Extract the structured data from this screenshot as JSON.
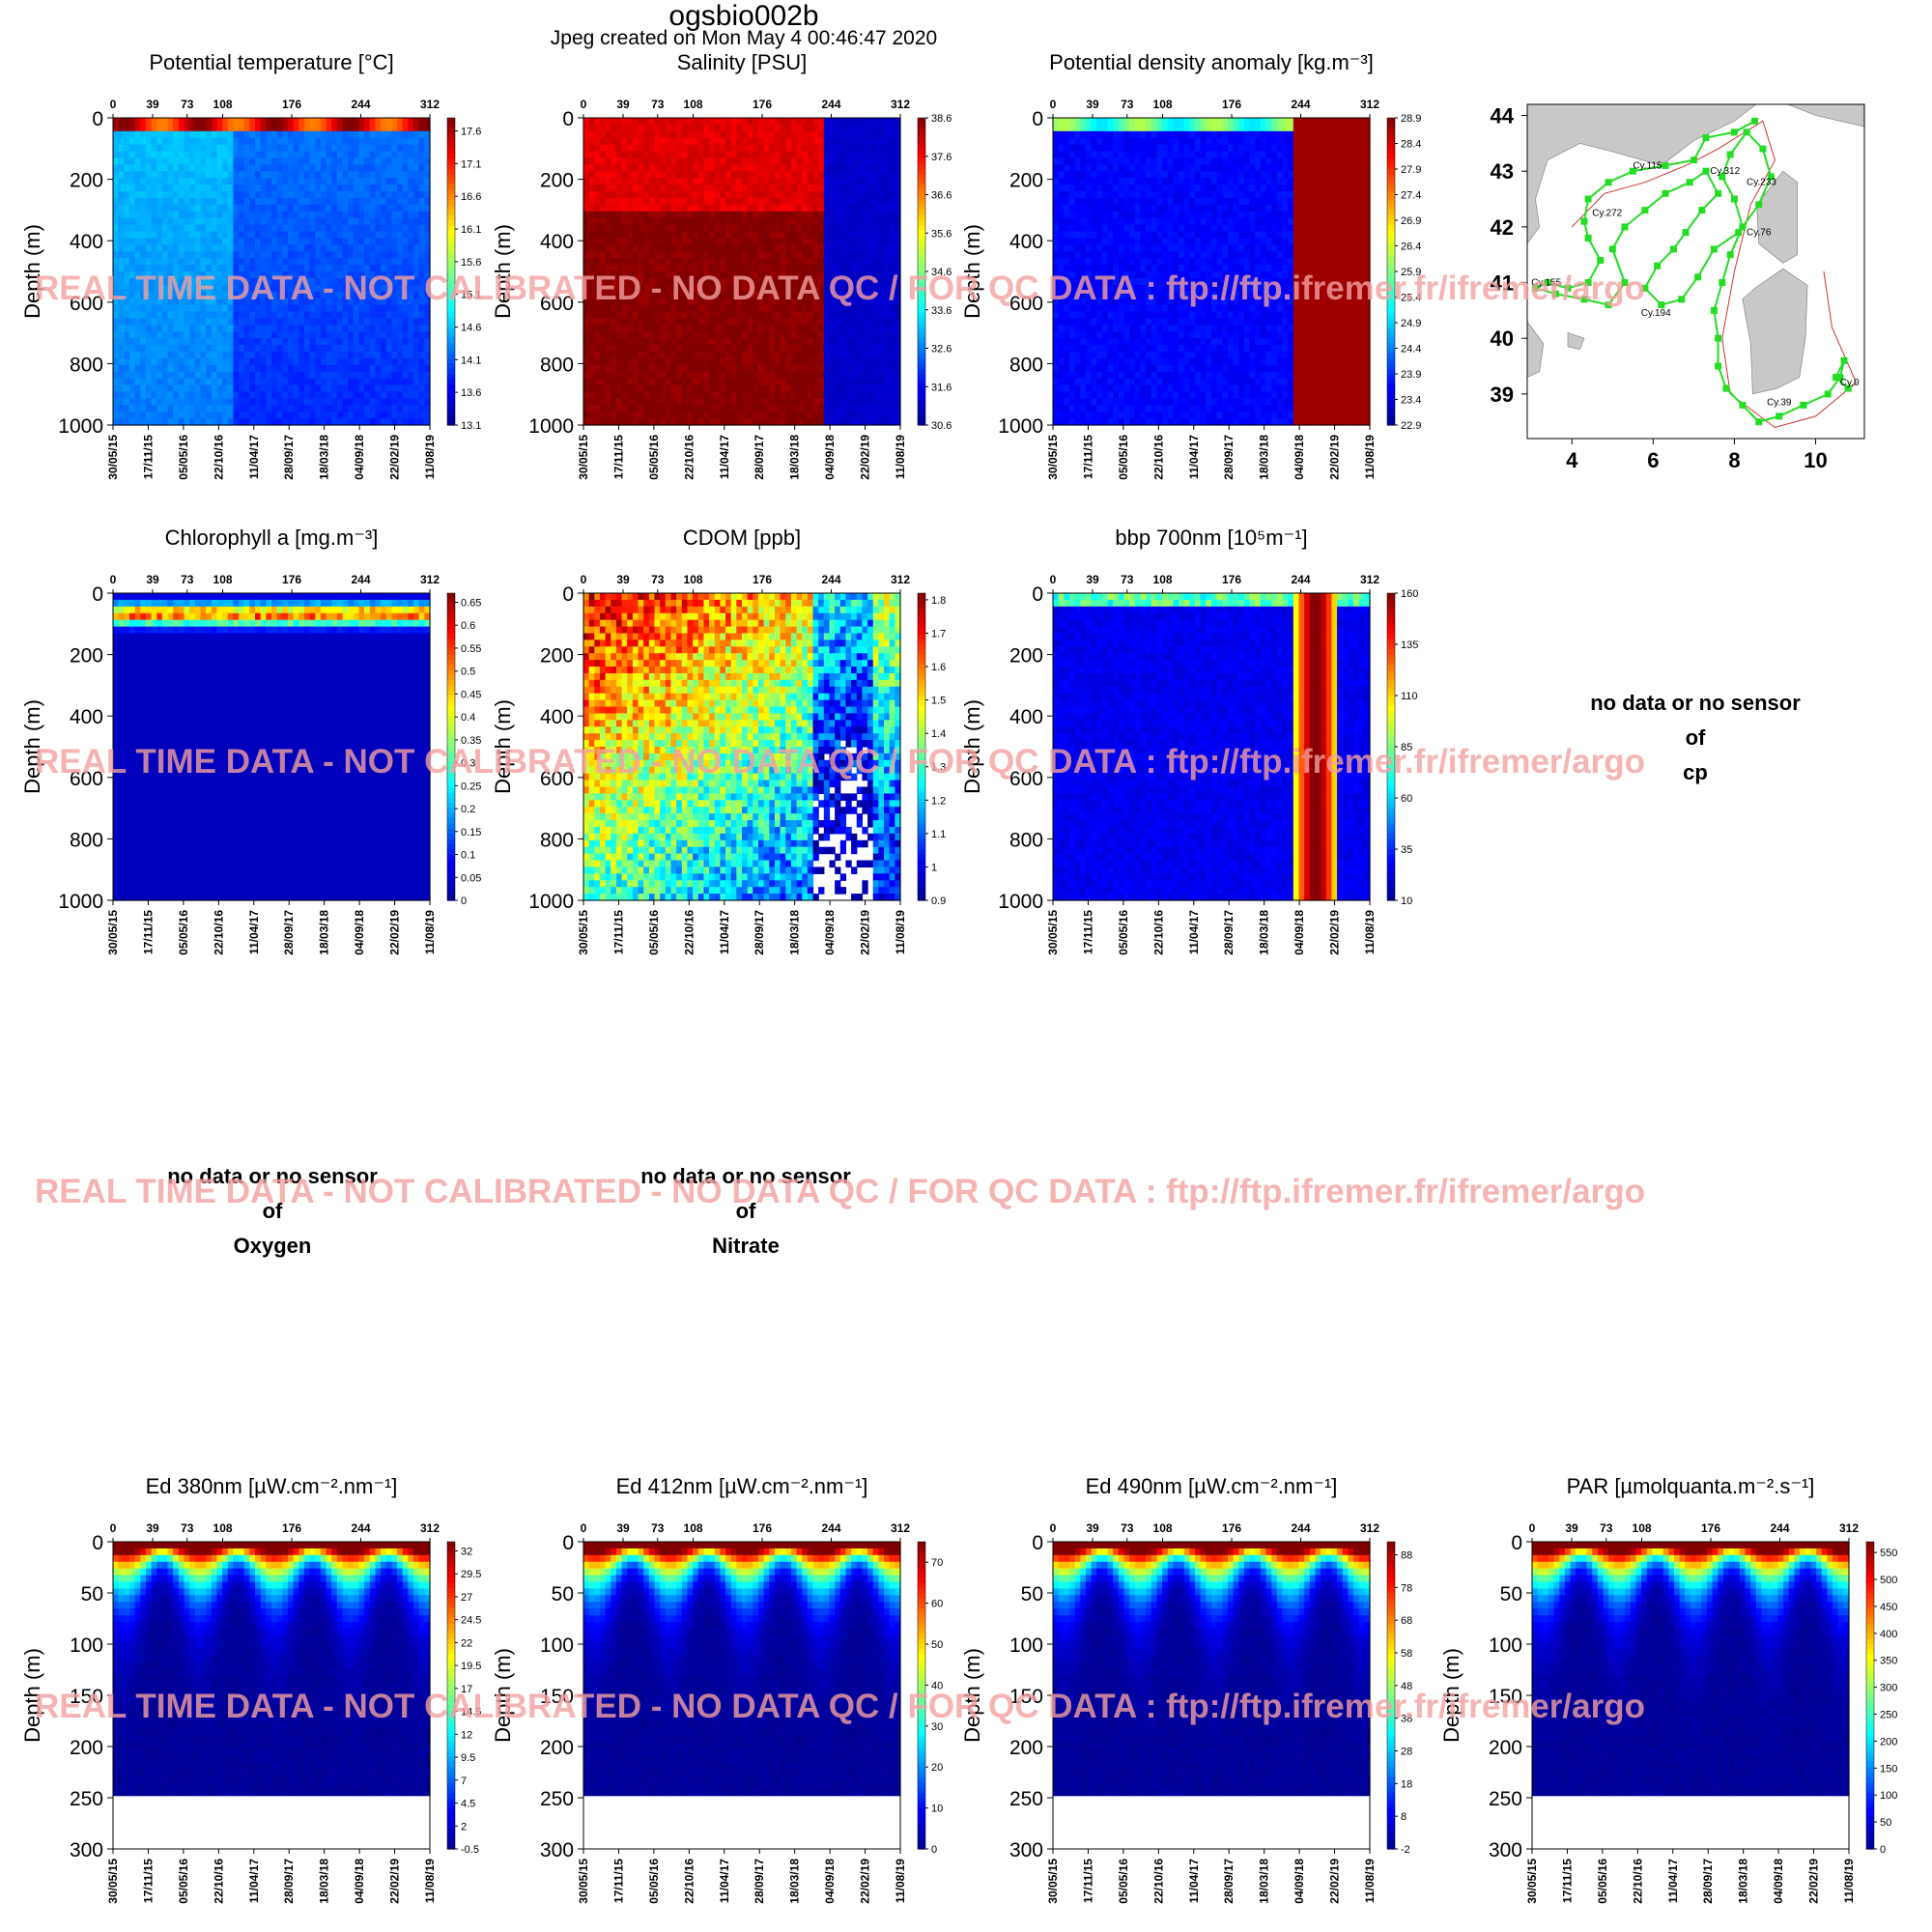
{
  "page": {
    "title": "ogsbio002b",
    "subtitle": "Jpeg created on  Mon May  4 00:46:47 2020",
    "watermark": "REAL TIME DATA - NOT CALIBRATED - NO DATA QC   /  FOR QC DATA : ftp://ftp.ifremer.fr/ifremer/argo",
    "no_data_lines": [
      "no data or no sensor",
      "of"
    ]
  },
  "axes": {
    "depth_label": "Depth (m)",
    "cycle_ticks": [
      0,
      39,
      73,
      108,
      176,
      244,
      312
    ],
    "date_ticks": [
      "30/05/15",
      "17/11/15",
      "05/05/16",
      "22/10/16",
      "11/04/17",
      "28/09/17",
      "18/03/18",
      "04/09/18",
      "22/02/19",
      "11/08/19"
    ]
  },
  "colors": {
    "colormap": [
      "#00008f",
      "#0000ff",
      "#0080ff",
      "#00ffff",
      "#80ff80",
      "#ffff00",
      "#ff8000",
      "#ff0000",
      "#800000"
    ],
    "track": "#22dd22",
    "land": "#c8c8c8",
    "watermark": "#f4a0a0"
  },
  "chart_data": [
    {
      "id": "temp",
      "type": "heatmap",
      "title": "Potential temperature [°C]",
      "ylabel": "Depth (m)",
      "ylim": [
        0,
        1000
      ],
      "y_ticks": [
        0,
        200,
        400,
        600,
        800,
        1000
      ],
      "colorbar": {
        "ticks": [
          "17.6",
          "17.1",
          "16.6",
          "16.1",
          "15.6",
          "15.1",
          "14.6",
          "14.1",
          "13.6",
          "13.1"
        ],
        "range": [
          13.1,
          17.8
        ]
      },
      "pattern": "temp"
    },
    {
      "id": "sal",
      "type": "heatmap",
      "title": "Salinity [PSU]",
      "ylabel": "Depth (m)",
      "ylim": [
        0,
        1000
      ],
      "y_ticks": [
        0,
        200,
        400,
        600,
        800,
        1000
      ],
      "colorbar": {
        "ticks": [
          "38.6",
          "37.6",
          "36.6",
          "35.6",
          "34.6",
          "33.6",
          "32.6",
          "31.6",
          "30.6"
        ],
        "range": [
          30.6,
          38.6
        ]
      },
      "pattern": "sal"
    },
    {
      "id": "dens",
      "type": "heatmap",
      "title": "Potential density anomaly [kg.m⁻³]",
      "ylabel": "Depth (m)",
      "ylim": [
        0,
        1000
      ],
      "y_ticks": [
        0,
        200,
        400,
        600,
        800,
        1000
      ],
      "colorbar": {
        "ticks": [
          "28.9",
          "28.4",
          "27.9",
          "27.4",
          "26.9",
          "26.4",
          "25.9",
          "25.4",
          "24.9",
          "24.4",
          "23.9",
          "23.4",
          "22.9"
        ],
        "range": [
          22.9,
          28.9
        ]
      },
      "pattern": "dens"
    },
    {
      "id": "chl",
      "type": "heatmap",
      "title": "Chlorophyll a [mg.m⁻³]",
      "ylabel": "Depth (m)",
      "ylim": [
        0,
        1000
      ],
      "y_ticks": [
        0,
        200,
        400,
        600,
        800,
        1000
      ],
      "colorbar": {
        "ticks": [
          "0.65",
          "0.6",
          "0.55",
          "0.5",
          "0.45",
          "0.4",
          "0.35",
          "0.3",
          "0.25",
          "0.2",
          "0.15",
          "0.1",
          "0.05",
          "0"
        ],
        "range": [
          0,
          0.67
        ]
      },
      "pattern": "chl"
    },
    {
      "id": "cdom",
      "type": "heatmap",
      "title": "CDOM  [ppb]",
      "ylabel": "Depth (m)",
      "ylim": [
        0,
        1000
      ],
      "y_ticks": [
        0,
        200,
        400,
        600,
        800,
        1000
      ],
      "colorbar": {
        "ticks": [
          "1.8",
          "1.7",
          "1.6",
          "1.5",
          "1.4",
          "1.3",
          "1.2",
          "1.1",
          "1",
          "0.9"
        ],
        "range": [
          0.9,
          1.82
        ]
      },
      "pattern": "cdom"
    },
    {
      "id": "bbp",
      "type": "heatmap",
      "title": "bbp 700nm [10⁵m⁻¹]",
      "ylabel": "Depth (m)",
      "ylim": [
        0,
        1000
      ],
      "y_ticks": [
        0,
        200,
        400,
        600,
        800,
        1000
      ],
      "colorbar": {
        "ticks": [
          "160",
          "135",
          "110",
          "85",
          "60",
          "35",
          "10"
        ],
        "range": [
          10,
          160
        ]
      },
      "pattern": "bbp"
    },
    {
      "id": "ed380",
      "type": "heatmap",
      "title": "Ed 380nm [µW.cm⁻².nm⁻¹]",
      "ylabel": "Depth (m)",
      "ylim": [
        0,
        300
      ],
      "y_ticks": [
        0,
        50,
        100,
        150,
        200,
        250,
        300
      ],
      "colorbar": {
        "ticks": [
          "32",
          "29.5",
          "27",
          "24.5",
          "22",
          "19.5",
          "17",
          "14.5",
          "12",
          "9.5",
          "7",
          "4.5",
          "2",
          "-0.5"
        ],
        "range": [
          -0.5,
          33
        ]
      },
      "pattern": "light"
    },
    {
      "id": "ed412",
      "type": "heatmap",
      "title": "Ed 412nm [µW.cm⁻².nm⁻¹]",
      "ylabel": "Depth (m)",
      "ylim": [
        0,
        300
      ],
      "y_ticks": [
        0,
        50,
        100,
        150,
        200,
        250,
        300
      ],
      "colorbar": {
        "ticks": [
          "70",
          "60",
          "50",
          "40",
          "30",
          "20",
          "10",
          "0"
        ],
        "range": [
          0,
          75
        ]
      },
      "pattern": "light"
    },
    {
      "id": "ed490",
      "type": "heatmap",
      "title": "Ed 490nm [µW.cm⁻².nm⁻¹]",
      "ylabel": "Depth (m)",
      "ylim": [
        0,
        300
      ],
      "y_ticks": [
        0,
        50,
        100,
        150,
        200,
        250,
        300
      ],
      "colorbar": {
        "ticks": [
          "88",
          "78",
          "68",
          "58",
          "48",
          "38",
          "28",
          "18",
          "8",
          "-2"
        ],
        "range": [
          -2,
          92
        ]
      },
      "pattern": "light"
    },
    {
      "id": "par",
      "type": "heatmap",
      "title": "PAR [µmolquanta.m⁻².s⁻¹]",
      "ylabel": "Depth (m)",
      "ylim": [
        0,
        300
      ],
      "y_ticks": [
        0,
        50,
        100,
        150,
        200,
        250,
        300
      ],
      "colorbar": {
        "ticks": [
          "550",
          "500",
          "450",
          "400",
          "350",
          "300",
          "250",
          "200",
          "150",
          "100",
          "50",
          "0"
        ],
        "range": [
          0,
          570
        ]
      },
      "pattern": "light"
    }
  ],
  "missing": [
    {
      "id": "cp",
      "label": "cp"
    },
    {
      "id": "oxygen",
      "label": "Oxygen"
    },
    {
      "id": "nitrate",
      "label": "Nitrate"
    }
  ],
  "map": {
    "xlim": [
      2.9,
      11.2
    ],
    "ylim": [
      38.2,
      44.2
    ],
    "x_ticks": [
      "4",
      "6",
      "8",
      "10"
    ],
    "y_ticks": [
      "44",
      "43",
      "42",
      "41",
      "40",
      "39"
    ],
    "cycle_labels": [
      {
        "text": "Cy.115",
        "lon": 5.5,
        "lat": 43.05
      },
      {
        "text": "Cy.312",
        "lon": 7.4,
        "lat": 42.95
      },
      {
        "text": "Cy.233",
        "lon": 8.3,
        "lat": 42.75
      },
      {
        "text": "Cy.272",
        "lon": 4.5,
        "lat": 42.2
      },
      {
        "text": "Cy.76",
        "lon": 8.3,
        "lat": 41.85
      },
      {
        "text": "Cy.155",
        "lon": 3.0,
        "lat": 40.95
      },
      {
        "text": "Cy.194",
        "lon": 5.7,
        "lat": 40.4
      },
      {
        "text": "Cy.39",
        "lon": 8.8,
        "lat": 38.8
      },
      {
        "text": "Cy.0",
        "lon": 10.6,
        "lat": 39.15
      }
    ],
    "track": [
      [
        8.5,
        43.9
      ],
      [
        8.0,
        43.7
      ],
      [
        7.3,
        43.6
      ],
      [
        7.0,
        43.2
      ],
      [
        6.3,
        43.1
      ],
      [
        5.5,
        43.0
      ],
      [
        4.9,
        42.8
      ],
      [
        4.4,
        42.5
      ],
      [
        4.3,
        42.1
      ],
      [
        4.4,
        41.8
      ],
      [
        4.7,
        41.4
      ],
      [
        4.4,
        41.0
      ],
      [
        3.9,
        40.9
      ],
      [
        3.4,
        41.0
      ],
      [
        3.1,
        40.9
      ],
      [
        3.6,
        40.8
      ],
      [
        4.3,
        40.7
      ],
      [
        4.9,
        40.6
      ],
      [
        5.3,
        41.0
      ],
      [
        5.0,
        41.6
      ],
      [
        5.3,
        42.0
      ],
      [
        5.8,
        42.3
      ],
      [
        6.3,
        42.6
      ],
      [
        6.9,
        42.8
      ],
      [
        7.3,
        43.0
      ],
      [
        7.6,
        42.6
      ],
      [
        7.2,
        42.3
      ],
      [
        6.8,
        41.9
      ],
      [
        6.5,
        41.6
      ],
      [
        6.1,
        41.3
      ],
      [
        5.8,
        40.9
      ],
      [
        6.2,
        40.6
      ],
      [
        6.7,
        40.7
      ],
      [
        7.1,
        41.1
      ],
      [
        7.5,
        41.6
      ],
      [
        8.1,
        41.9
      ],
      [
        8.6,
        42.4
      ],
      [
        8.9,
        42.9
      ],
      [
        8.7,
        43.4
      ],
      [
        8.3,
        43.7
      ],
      [
        7.9,
        43.3
      ],
      [
        7.7,
        42.9
      ],
      [
        8.0,
        42.5
      ],
      [
        8.2,
        42.0
      ],
      [
        7.9,
        41.5
      ],
      [
        7.7,
        41.0
      ],
      [
        7.5,
        40.5
      ],
      [
        7.6,
        40.0
      ],
      [
        7.6,
        39.5
      ],
      [
        7.8,
        39.1
      ],
      [
        8.2,
        38.8
      ],
      [
        8.6,
        38.5
      ],
      [
        9.1,
        38.6
      ],
      [
        9.7,
        38.8
      ],
      [
        10.3,
        39.0
      ],
      [
        10.6,
        39.3
      ],
      [
        10.7,
        39.6
      ],
      [
        10.5,
        39.3
      ],
      [
        10.8,
        39.1
      ]
    ]
  }
}
